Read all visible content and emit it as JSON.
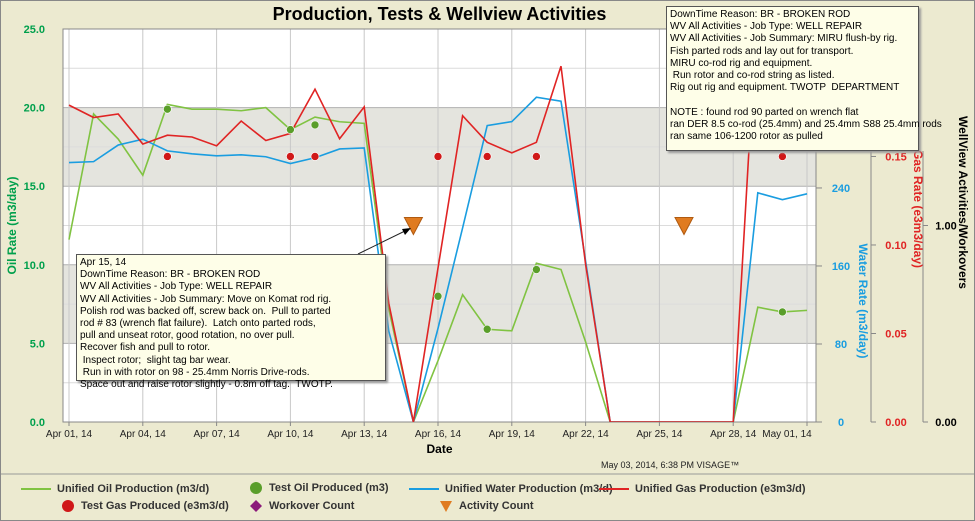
{
  "title": "Production, Tests & Wellview Activities",
  "timestamp": "May 03, 2014, 6:38 PM VISAGE™",
  "colors": {
    "oil": "#80c342",
    "oil_axis": "#00a04c",
    "water": "#1a9de0",
    "gas": "#e02424",
    "activity": "#e07b20",
    "workover": "#8b1a7a",
    "band": "#e4e4de"
  },
  "popups": [
    {
      "text": "Apr 15, 14\nDownTime Reason: BR - BROKEN ROD\nWV All Activities - Job Type: WELL REPAIR\nWV All Activities - Job Summary: Move on Komat rod rig.\nPolish rod was backed off, screw back on.  Pull to parted\nrod # 83 (wrench flat failure).  Latch onto parted rods,\npull and unseat rotor, good rotation, no over pull.\nRecover fish and pull to rotor.\n Inspect rotor;  slight tag bar wear.\n Run in with rotor on 98 - 25.4mm Norris Drive-rods.\nSpace out and raise rotor slightly - 0.8m off tag.  TWOTP."
    },
    {
      "text": "DownTime Reason: BR - BROKEN ROD\nWV All Activities - Job Type: WELL REPAIR\nWV All Activities - Job Summary: MIRU flush-by rig.\nFish parted rods and lay out for transport.\nMIRU co-rod rig and equipment.\n Run rotor and co-rod string as listed.\nRig out rig and equipment. TWOTP  DEPARTMENT\n\nNOTE : found rod 90 parted on wrench flat\nran DER 8.5 co-rod (25.4mm) and 25.4mm S88 25.4mm rods\nran same 106-1200 rotor as pulled"
    }
  ],
  "legend": [
    {
      "label": "Unified Oil Production (m3/d)",
      "marker": "line",
      "color": "#80c342"
    },
    {
      "label": "Test Oil Produced (m3)",
      "marker": "circle",
      "color": "#5a9e2a"
    },
    {
      "label": "Unified Water Production (m3/d)",
      "marker": "line",
      "color": "#1a9de0"
    },
    {
      "label": "Unified Gas Production (e3m3/d)",
      "marker": "line",
      "color": "#e02424"
    },
    {
      "label": "Test Gas Produced (e3m3/d)",
      "marker": "circle",
      "color": "#d01818"
    },
    {
      "label": "Workover Count",
      "marker": "diamond",
      "color": "#8b1a7a"
    },
    {
      "label": "Activity Count",
      "marker": "triangle",
      "color": "#e07b20"
    }
  ],
  "chart_data": {
    "type": "line",
    "title": "Production, Tests & Wellview Activities",
    "xlabel": "Date",
    "x": [
      "Apr 01",
      "Apr 02",
      "Apr 03",
      "Apr 04",
      "Apr 05",
      "Apr 06",
      "Apr 07",
      "Apr 08",
      "Apr 09",
      "Apr 10",
      "Apr 11",
      "Apr 12",
      "Apr 13",
      "Apr 14",
      "Apr 15",
      "Apr 16",
      "Apr 17",
      "Apr 18",
      "Apr 19",
      "Apr 20",
      "Apr 21",
      "Apr 22",
      "Apr 23",
      "Apr 24",
      "Apr 25",
      "Apr 26",
      "Apr 27",
      "Apr 28",
      "Apr 29",
      "Apr 30",
      "May 01"
    ],
    "xticks": [
      "Apr 01, 14",
      "Apr 04, 14",
      "Apr 07, 14",
      "Apr 10, 14",
      "Apr 13, 14",
      "Apr 16, 14",
      "Apr 19, 14",
      "Apr 22, 14",
      "Apr 25, 14",
      "Apr 28, 14",
      "May 01, 14"
    ],
    "axes": {
      "oil": {
        "label": "Oil Rate (m3/day)",
        "range": [
          0,
          25
        ],
        "ticks": [
          "0.0",
          "5.0",
          "10.0",
          "15.0",
          "20.0",
          "25.0"
        ]
      },
      "water": {
        "label": "Water Rate (m3/day)",
        "range": [
          0,
          403
        ],
        "ticks": [
          "0",
          "80",
          "160",
          "240"
        ]
      },
      "gas": {
        "label": "Gas Rate (e3m3/day)",
        "range": [
          0,
          0.222
        ],
        "ticks": [
          "0.00",
          "0.05",
          "0.10",
          "0.15"
        ]
      },
      "activity": {
        "label": "WellView Activities/Workovers",
        "range": [
          0,
          2
        ],
        "ticks": [
          "0.00",
          "1.00"
        ]
      }
    },
    "series": [
      {
        "name": "Unified Oil Production (m3/d)",
        "axis": "oil",
        "values": [
          11.6,
          19.6,
          18.0,
          15.7,
          20.2,
          19.9,
          19.9,
          19.8,
          20.0,
          18.6,
          19.4,
          19.1,
          19.0,
          7.2,
          0,
          3.9,
          8.1,
          5.9,
          5.8,
          10.1,
          9.7,
          5.1,
          0,
          0,
          0,
          0,
          0,
          0,
          7.3,
          7.0,
          7.1
        ]
      },
      {
        "name": "Unified Water Production (m3/d)",
        "axis": "water",
        "values": [
          266,
          267,
          284,
          290,
          278,
          275,
          273,
          274,
          272,
          265,
          271,
          280,
          281,
          93,
          0,
          96,
          199,
          304,
          308,
          333,
          329,
          165,
          0,
          0,
          0,
          0,
          0,
          0,
          235,
          228,
          234
        ]
      },
      {
        "name": "Unified Gas Production (e3m3/d)",
        "axis": "gas",
        "values": [
          0.179,
          0.172,
          0.174,
          0.157,
          0.162,
          0.161,
          0.156,
          0.17,
          0.159,
          0.163,
          0.188,
          0.16,
          0.178,
          0.067,
          0,
          0.087,
          0.173,
          0.158,
          0.152,
          0.158,
          0.201,
          0.089,
          0,
          0,
          0,
          0,
          0,
          0,
          0.24,
          0.24,
          0.24
        ]
      }
    ],
    "points": [
      {
        "name": "Test Oil Produced (m3)",
        "axis": "oil",
        "x": [
          "Apr 05",
          "Apr 10",
          "Apr 11",
          "Apr 16",
          "Apr 18",
          "Apr 20",
          "Apr 30"
        ],
        "values": [
          19.9,
          18.6,
          18.9,
          8.0,
          5.9,
          9.7,
          7.0
        ]
      },
      {
        "name": "Test Gas Produced (e3m3/d)",
        "axis": "gas",
        "x": [
          "Apr 05",
          "Apr 10",
          "Apr 11",
          "Apr 16",
          "Apr 18",
          "Apr 20",
          "Apr 30"
        ],
        "values": [
          0.15,
          0.15,
          0.15,
          0.15,
          0.15,
          0.15,
          0.15
        ]
      },
      {
        "name": "Activity Count",
        "axis": "activity",
        "x": [
          "Apr 15",
          "Apr 26"
        ],
        "values": [
          1,
          1
        ]
      }
    ],
    "bands_oil": [
      [
        5,
        10
      ],
      [
        15,
        20
      ]
    ],
    "grid": true
  }
}
